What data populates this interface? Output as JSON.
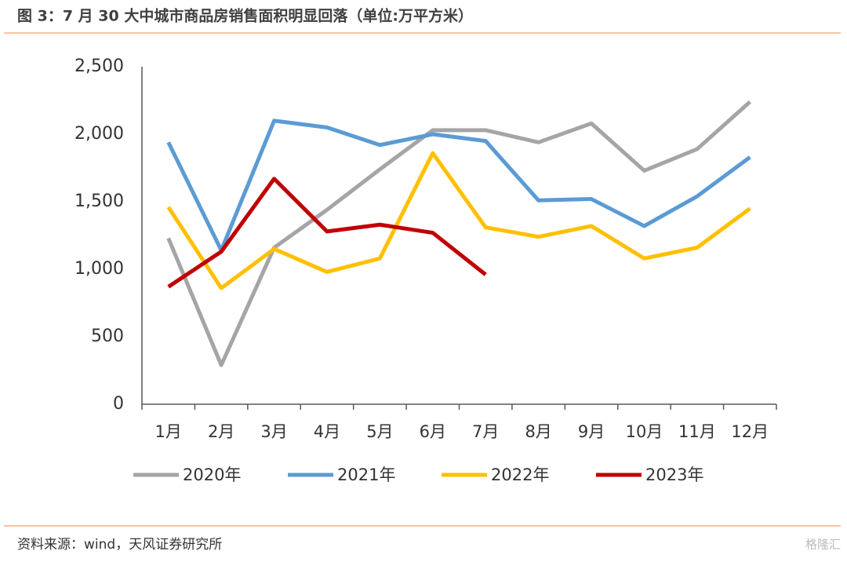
{
  "chart_data": {
    "type": "line",
    "title": "图 3：7 月 30 大中城市商品房销售面积明显回落（单位:万平方米）",
    "source": "资料来源：wind，天风证券研究所",
    "watermark": "格隆汇",
    "categories": [
      "1月",
      "2月",
      "3月",
      "4月",
      "5月",
      "6月",
      "7月",
      "8月",
      "9月",
      "10月",
      "11月",
      "12月"
    ],
    "series": [
      {
        "name": "2020年",
        "color": "#a5a5a5",
        "values": [
          1230,
          290,
          1160,
          1440,
          1740,
          2030,
          2030,
          1940,
          2080,
          1730,
          1890,
          2240
        ]
      },
      {
        "name": "2021年",
        "color": "#5b9bd5",
        "values": [
          1940,
          1140,
          2100,
          2050,
          1920,
          2000,
          1950,
          1510,
          1520,
          1320,
          1540,
          1830
        ]
      },
      {
        "name": "2022年",
        "color": "#ffc000",
        "values": [
          1460,
          860,
          1150,
          980,
          1080,
          1860,
          1310,
          1240,
          1320,
          1080,
          1160,
          1450
        ]
      },
      {
        "name": "2023年",
        "color": "#c00000",
        "values": [
          870,
          1130,
          1670,
          1280,
          1330,
          1270,
          960,
          null,
          null,
          null,
          null,
          null
        ]
      }
    ],
    "ylim": [
      0,
      2500
    ],
    "yticks": [
      0,
      500,
      {
        "value": 1000,
        "label": "1,000"
      },
      {
        "value": 1500,
        "label": "1,500"
      },
      {
        "value": 2000,
        "label": "2,000"
      },
      {
        "value": 2500,
        "label": "2,500"
      }
    ],
    "grid": false
  }
}
